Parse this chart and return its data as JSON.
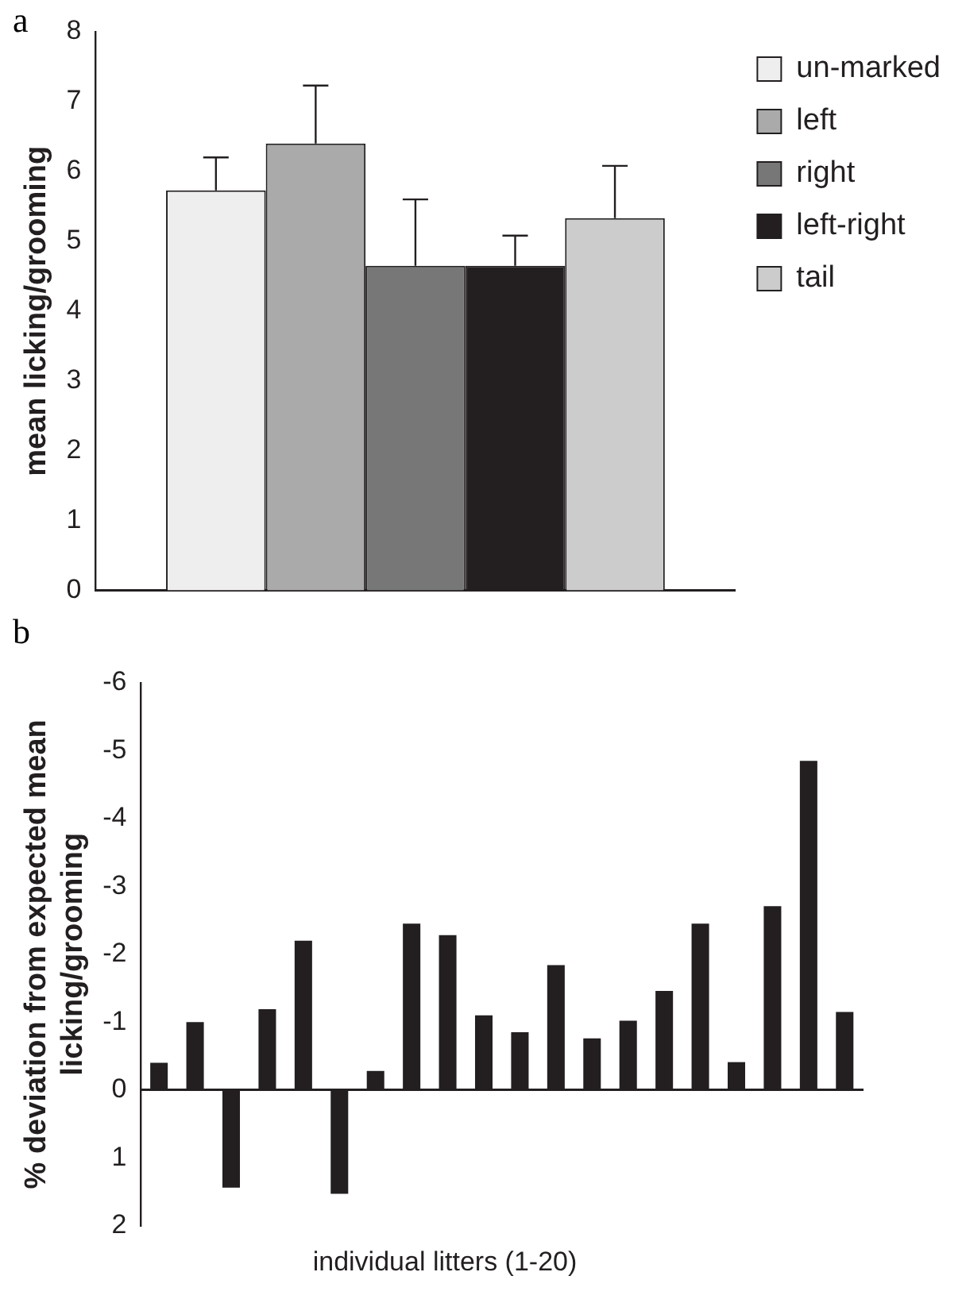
{
  "chart_data": [
    {
      "type": "bar",
      "title": "a",
      "ylabel": "mean licking/grooming",
      "categories": [
        null
      ],
      "ylim": [
        0,
        8
      ],
      "yticks": [
        0,
        1,
        2,
        3,
        4,
        5,
        6,
        7,
        8
      ],
      "legend": "right",
      "series": [
        {
          "name": "un-marked",
          "color": "#eeeeee",
          "values": [
            5.73
          ],
          "errors": [
            [
              5.73,
              6.2
            ]
          ]
        },
        {
          "name": "left",
          "color": "#aaaaaa",
          "values": [
            6.4
          ],
          "errors": [
            [
              6.4,
              7.23
            ]
          ]
        },
        {
          "name": "right",
          "color": "#777777",
          "values": [
            4.65
          ],
          "errors": [
            [
              4.65,
              5.6
            ]
          ]
        },
        {
          "name": "left-right",
          "color": "#231f20",
          "values": [
            4.65
          ],
          "errors": [
            [
              4.65,
              5.08
            ]
          ]
        },
        {
          "name": "tail",
          "color": "#cccccc",
          "values": [
            5.33
          ],
          "errors": [
            [
              5.33,
              6.08
            ]
          ]
        }
      ]
    },
    {
      "type": "bar",
      "title": "b",
      "ylabel": "% deviation from expected mean licking/grooming",
      "xlabel": "individual litters (1-20)",
      "categories": [
        null,
        null,
        null,
        null,
        null,
        null,
        null,
        null,
        null,
        null,
        null,
        null,
        null,
        null,
        null,
        null,
        null,
        null,
        null,
        null
      ],
      "ylim": [
        2,
        -6
      ],
      "yticks": [
        2,
        1,
        0,
        -1,
        -2,
        -3,
        -4,
        -5,
        -6
      ],
      "color": "#231f20",
      "values": [
        -0.4,
        -1.0,
        1.44,
        -1.19,
        -2.2,
        1.53,
        -0.28,
        -2.45,
        -2.28,
        -1.1,
        -0.85,
        -1.84,
        -0.76,
        -1.02,
        -1.46,
        -2.45,
        -0.41,
        -2.71,
        -4.85,
        -1.15
      ]
    }
  ]
}
